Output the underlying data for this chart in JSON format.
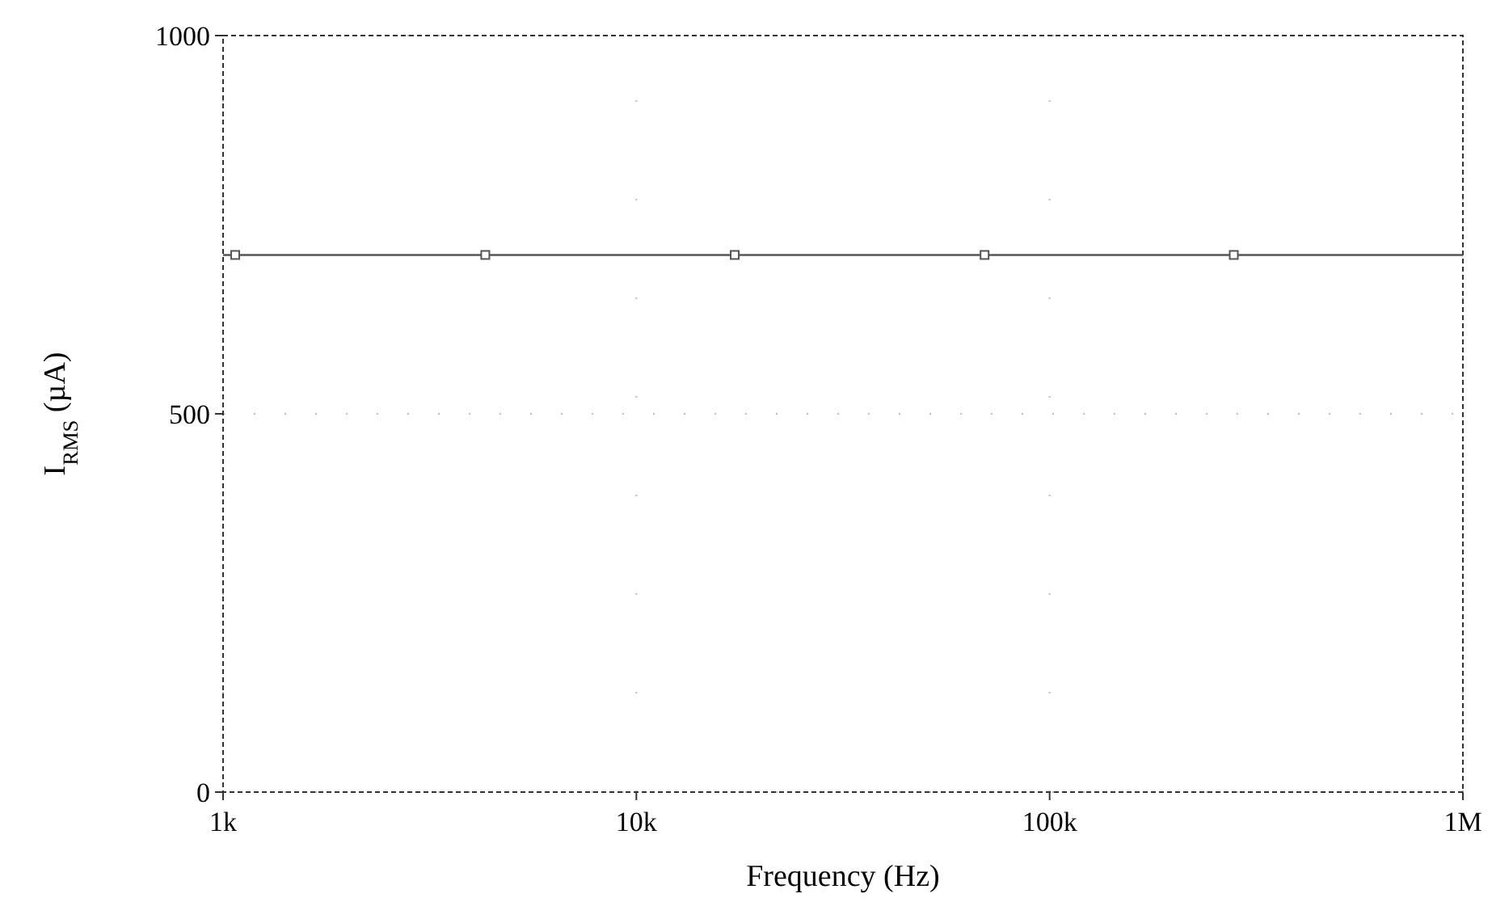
{
  "chart_data": {
    "type": "line",
    "xlabel": "Frequency (Hz)",
    "ylabel": "I$_{RMS}$ (µA)",
    "log": "x",
    "xlim": [
      1000,
      1000000
    ],
    "xticks": [
      {
        "value": 1000,
        "label": "1k"
      },
      {
        "value": 10000,
        "label": "10k"
      },
      {
        "value": 100000,
        "label": "100k"
      },
      {
        "value": 1000000,
        "label": "1M"
      }
    ],
    "ylim": [
      0,
      1000
    ],
    "yticks": [
      0,
      500,
      1000
    ],
    "grid": true,
    "line_style": "solid",
    "series": [
      {
        "type": "line",
        "color": "#555555",
        "marker": "none",
        "x": [
          1000,
          1000000
        ],
        "values": [
          710,
          710
        ]
      },
      {
        "type": "scatter",
        "color": "#555555",
        "marker": "square",
        "x": [
          1070,
          4310,
          17300,
          69600,
          279000
        ],
        "values": [
          710,
          710,
          710,
          710,
          710
        ]
      }
    ]
  }
}
